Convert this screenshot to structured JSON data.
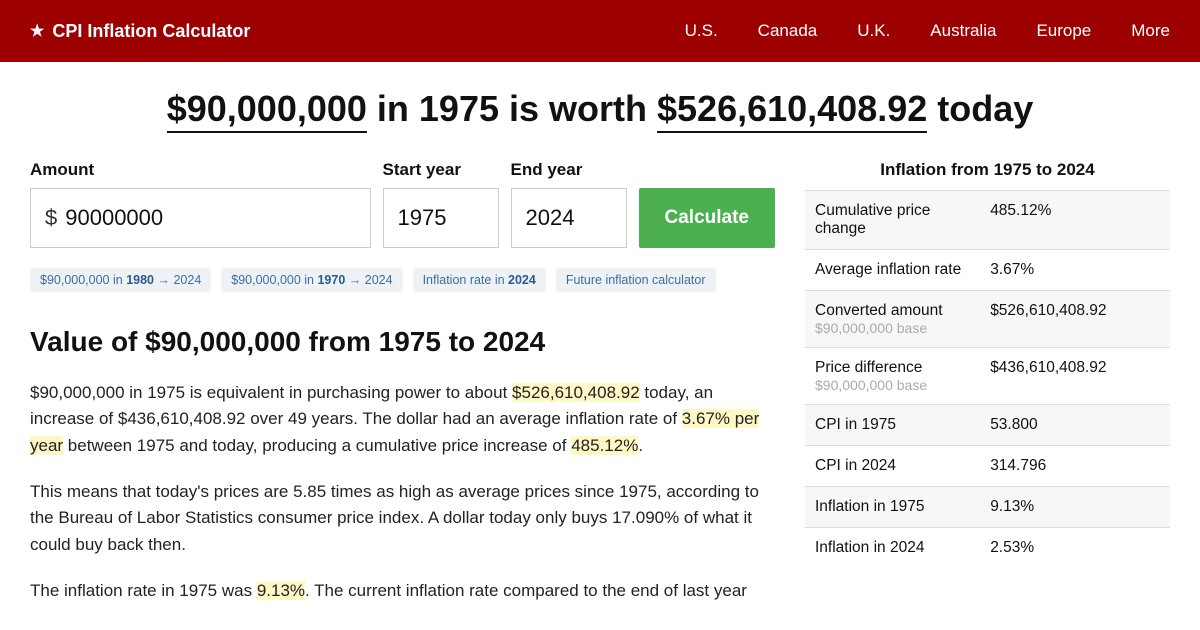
{
  "header": {
    "brand": "CPI Inflation Calculator",
    "nav": [
      "U.S.",
      "Canada",
      "U.K.",
      "Australia",
      "Europe",
      "More"
    ]
  },
  "headline": {
    "amount_from": "$90,000,000",
    "mid1": " in 1975 is worth ",
    "amount_to": "$526,610,408.92",
    "mid2": " today"
  },
  "form": {
    "amount_label": "Amount",
    "amount_value": "90000000",
    "start_label": "Start year",
    "start_value": "1975",
    "end_label": "End year",
    "end_value": "2024",
    "button": "Calculate"
  },
  "chips": {
    "c1a": "$90,000,000 in ",
    "c1b": "1980",
    "c1c": " → 2024",
    "c2a": "$90,000,000 in ",
    "c2b": "1970",
    "c2c": " → 2024",
    "c3a": "Inflation rate in ",
    "c3b": "2024",
    "c4": "Future inflation calculator"
  },
  "section_title": "Value of $90,000,000 from 1975 to 2024",
  "para1": {
    "t1": "$90,000,000 in 1975 is equivalent in purchasing power to about ",
    "h1": "$526,610,408.92",
    "t2": " today, an increase of $436,610,408.92 over 49 years. The dollar had an average inflation rate of ",
    "h2": "3.67% per year",
    "t3": " between 1975 and today, producing a cumulative price increase of ",
    "h3": "485.12%",
    "t4": "."
  },
  "para2": "This means that today's prices are 5.85 times as high as average prices since 1975, according to the Bureau of Labor Statistics consumer price index. A dollar today only buys 17.090% of what it could buy back then.",
  "para3": {
    "t1": "The inflation rate in 1975 was ",
    "h1": "9.13%",
    "t2": ". The current inflation rate compared to the end of last year"
  },
  "sidebar": {
    "title": "Inflation from 1975 to 2024",
    "rows": [
      {
        "label": "Cumulative price change",
        "sub": "",
        "value": "485.12%"
      },
      {
        "label": "Average inflation rate",
        "sub": "",
        "value": "3.67%"
      },
      {
        "label": "Converted amount",
        "sub": "$90,000,000 base",
        "value": "$526,610,408.92"
      },
      {
        "label": "Price difference",
        "sub": "$90,000,000 base",
        "value": "$436,610,408.92"
      },
      {
        "label": "CPI in 1975",
        "sub": "",
        "value": "53.800"
      },
      {
        "label": "CPI in 2024",
        "sub": "",
        "value": "314.796"
      },
      {
        "label": "Inflation in 1975",
        "sub": "",
        "value": "9.13%"
      },
      {
        "label": "Inflation in 2024",
        "sub": "",
        "value": "2.53%"
      }
    ]
  }
}
